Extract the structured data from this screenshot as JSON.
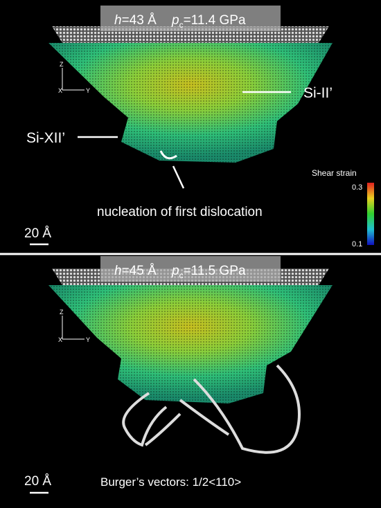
{
  "panels": [
    {
      "header": {
        "h": "h",
        "h_value": "=43 Å",
        "p": "p",
        "p_sub": "c",
        "p_value": "=11.4 GPa"
      },
      "axes": {
        "z": "Z",
        "x": "X",
        "y": "Y"
      },
      "labels": [
        "Si-II’",
        "Si-XII’",
        "nucleation of first dislocation"
      ],
      "scale_bar": "20 Å",
      "colorbar": {
        "title": "Shear strain",
        "max": "0.3",
        "min": "0.1"
      }
    },
    {
      "header": {
        "h": "h",
        "h_value": "=45 Å",
        "p": "p",
        "p_sub": "c",
        "p_value": "=11.5 GPa"
      },
      "axes": {
        "z": "Z",
        "x": "X",
        "y": "Y"
      },
      "scale_bar": "20 Å",
      "caption": "Burger’s vectors: 1/2<110>"
    }
  ]
}
